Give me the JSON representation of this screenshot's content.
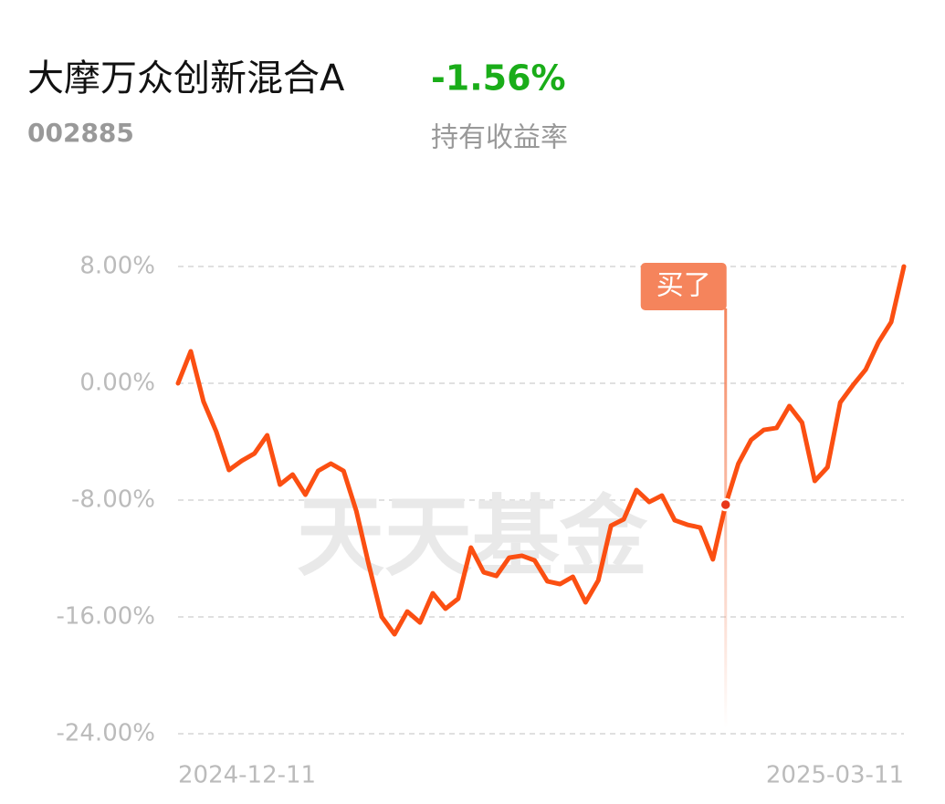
{
  "header": {
    "title": "大摩万众创新混合A",
    "code": "002885",
    "return_value": "-1.56%",
    "return_label": "持有收益率"
  },
  "chart_data": {
    "type": "line",
    "watermark": "天天基金",
    "categories": [
      "2024-12-11",
      null,
      null,
      null,
      null,
      null,
      null,
      null,
      null,
      null,
      null,
      null,
      null,
      null,
      null,
      null,
      null,
      null,
      null,
      null,
      null,
      null,
      null,
      null,
      null,
      null,
      null,
      null,
      null,
      null,
      null,
      null,
      null,
      null,
      null,
      null,
      null,
      null,
      null,
      null,
      null,
      null,
      null,
      null,
      null,
      null,
      null,
      null,
      null,
      null,
      null,
      null,
      null,
      null,
      null,
      null,
      null,
      "2025-03-11"
    ],
    "series": [
      {
        "name": "持有收益率",
        "color": "#fb4f12",
        "values": [
          0,
          2.19,
          -1.25,
          -3.31,
          -5.94,
          -5.31,
          -4.81,
          -3.56,
          -6.94,
          -6.25,
          -7.63,
          -6.0,
          -5.5,
          -6.0,
          -8.75,
          -12.5,
          -16.0,
          -17.19,
          -15.63,
          -16.38,
          -14.38,
          -15.44,
          -14.75,
          -11.25,
          -12.94,
          -13.19,
          -11.94,
          -11.81,
          -12.13,
          -13.56,
          -13.75,
          -13.25,
          -15.0,
          -13.5,
          -9.75,
          -9.31,
          -7.31,
          -8.13,
          -7.69,
          -9.38,
          -9.69,
          -9.88,
          -12.06,
          -8.31,
          -5.5,
          -3.88,
          -3.19,
          -3.06,
          -1.56,
          -2.69,
          -6.69,
          -5.75,
          -1.31,
          -0.13,
          0.94,
          2.81,
          4.19,
          8.0
        ]
      }
    ],
    "annotations": [
      {
        "text": "买了",
        "index": 43,
        "color": "#f5845c"
      }
    ],
    "ylim": [
      -24,
      8
    ],
    "yticks": [
      {
        "value": 8,
        "label": "8.00%"
      },
      {
        "value": 0,
        "label": "0.00%"
      },
      {
        "value": -8,
        "label": "-8.00%"
      },
      {
        "value": -16,
        "label": "-16.00%"
      },
      {
        "value": -24,
        "label": "-24.00%"
      }
    ],
    "grid": true
  }
}
